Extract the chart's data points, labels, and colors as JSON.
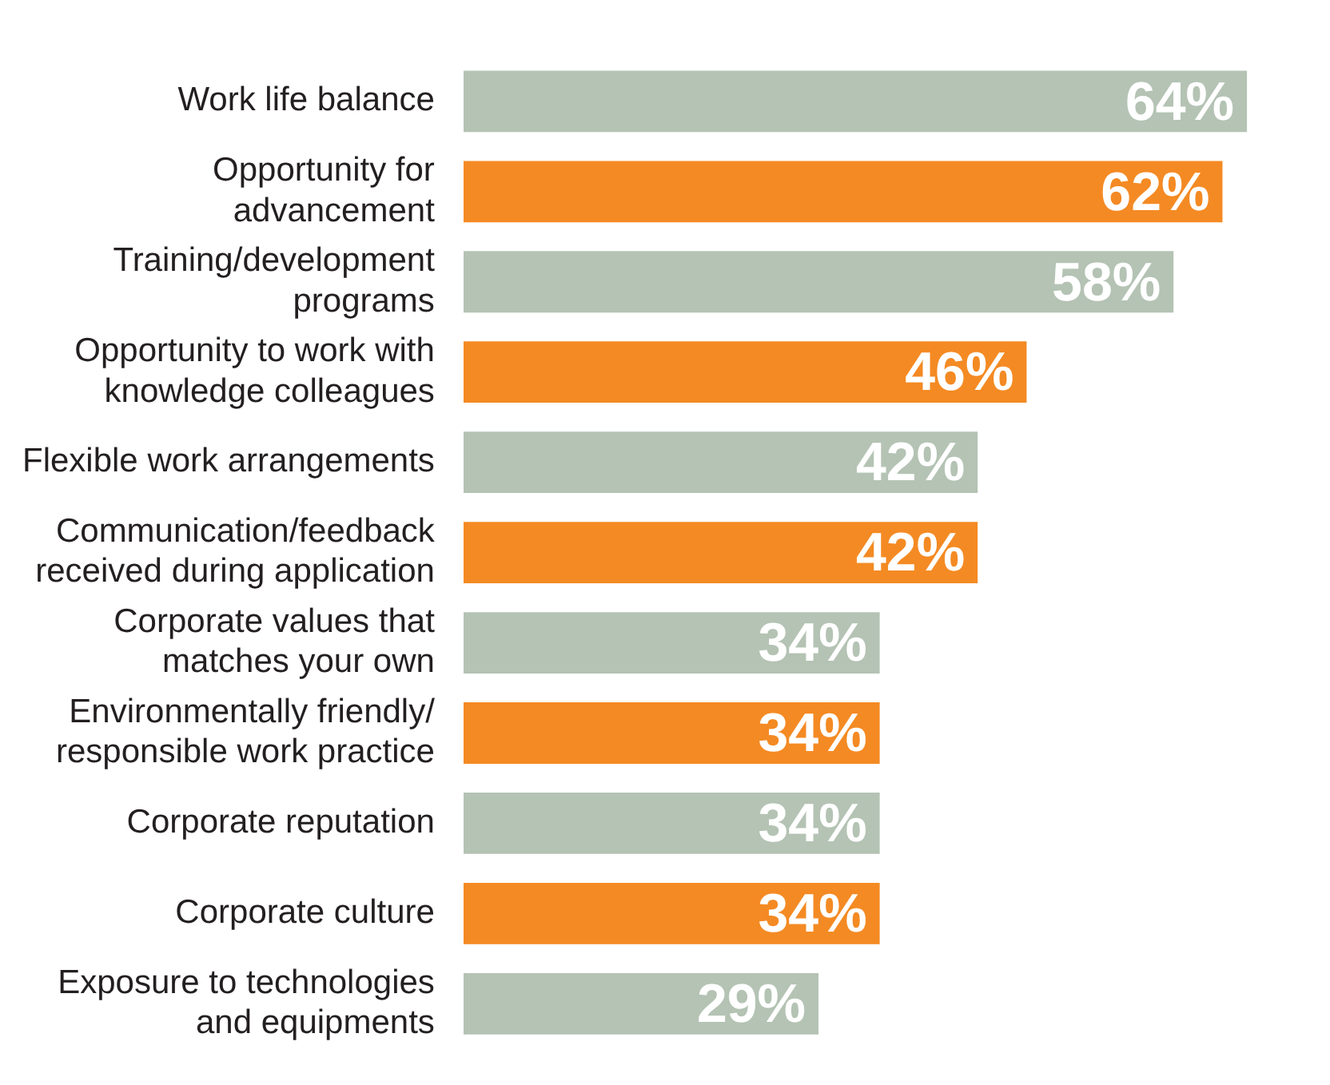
{
  "chart_data": {
    "type": "bar",
    "orientation": "horizontal",
    "categories": [
      "Work life balance",
      "Opportunity for\nadvancement",
      "Training/development\nprograms",
      "Opportunity to work with\nknowledge colleagues",
      "Flexible work arrangements",
      "Communication/feedback\nreceived during application",
      "Corporate values that\nmatches your own",
      "Environmentally friendly/\nresponsible work practice",
      "Corporate reputation",
      "Corporate culture",
      "Exposure to technologies\nand equipments"
    ],
    "values": [
      64,
      62,
      58,
      46,
      42,
      42,
      34,
      34,
      34,
      34,
      29
    ],
    "colors": [
      "#b4c3b4",
      "#f48a23",
      "#b4c3b4",
      "#f48a23",
      "#b4c3b4",
      "#f48a23",
      "#b4c3b4",
      "#f48a23",
      "#b4c3b4",
      "#f48a23",
      "#b4c3b4"
    ],
    "value_labels": [
      "64%",
      "62%",
      "58%",
      "46%",
      "42%",
      "42%",
      "34%",
      "34%",
      "34%",
      "34%",
      "29%"
    ],
    "tick_labels": "y"
  }
}
